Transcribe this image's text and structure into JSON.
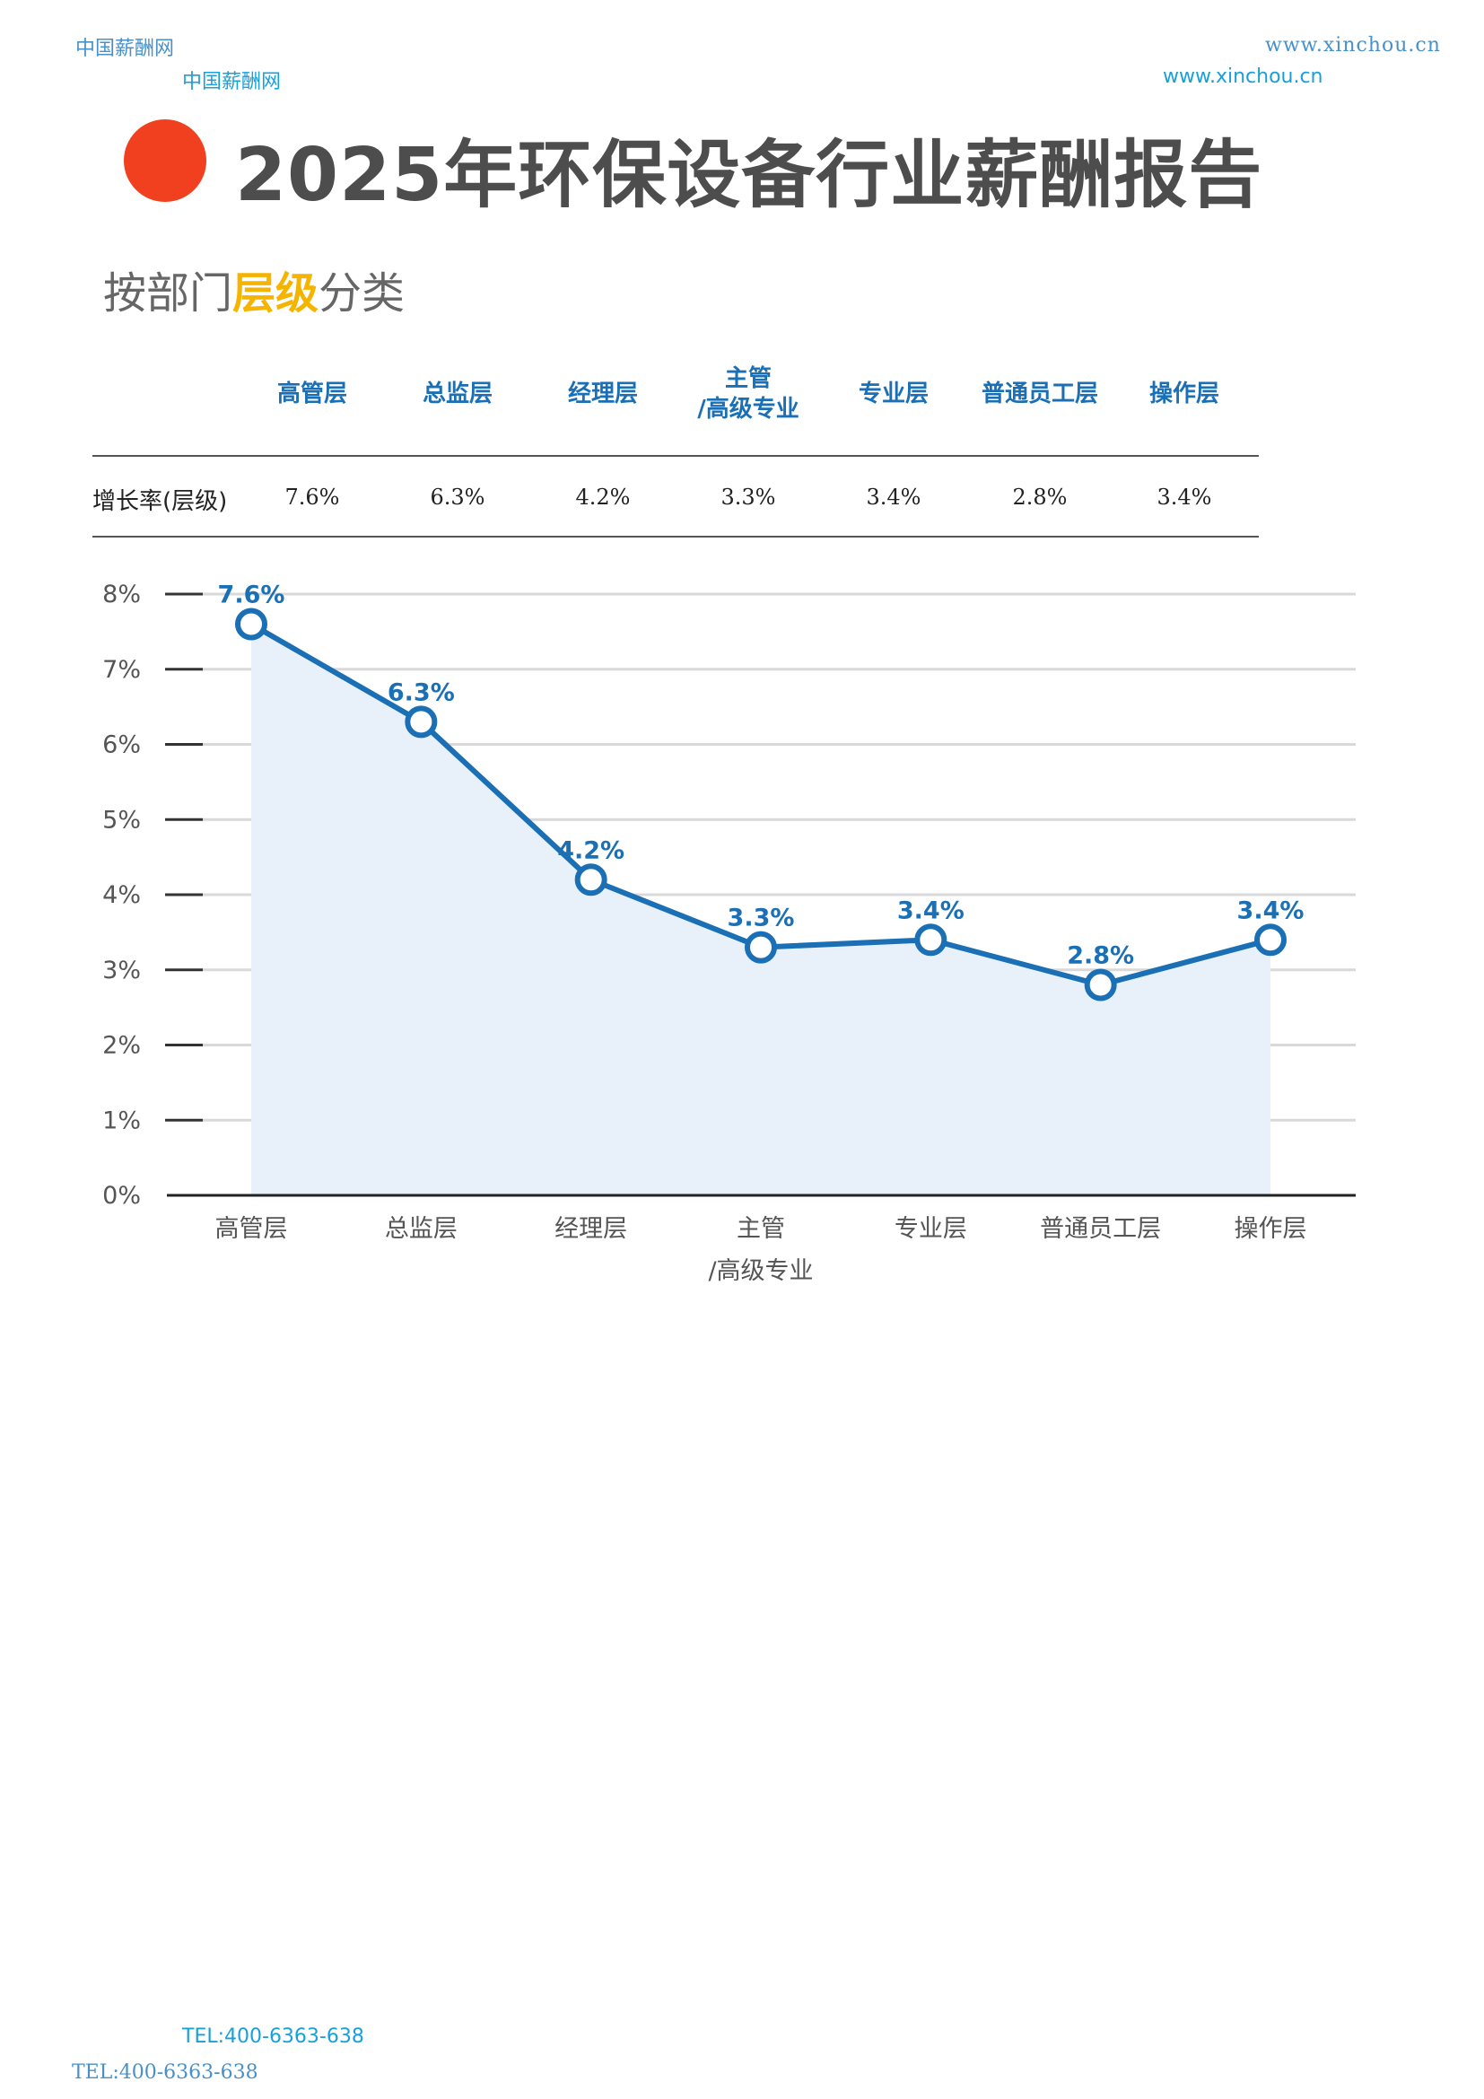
{
  "header": {
    "brand_top": "中国薪酬网",
    "brand_sub": "中国薪酬网",
    "url_top": "www.xinchou.cn",
    "url_sub": "www.xinchou.cn"
  },
  "page_title": "2025年环保设备行业薪酬报告",
  "subtitle": {
    "before": "按部门",
    "highlight": "层级",
    "after": "分类"
  },
  "table": {
    "columns": [
      "高管层",
      "总监层",
      "经理层",
      "主管\n/高级专业",
      "专业层",
      "普通员工层",
      "操作层"
    ],
    "row_label": "增长率(层级)",
    "values": [
      "7.6%",
      "6.3%",
      "4.2%",
      "3.3%",
      "3.4%",
      "2.8%",
      "3.4%"
    ]
  },
  "chart_data": {
    "type": "line",
    "categories": [
      "高管层",
      "总监层",
      "经理层",
      "主管\n/高级专业",
      "专业层",
      "普通员工层",
      "操作层"
    ],
    "series": [
      {
        "values": [
          7.6,
          6.3,
          4.2,
          3.3,
          3.4,
          2.8,
          3.4
        ]
      }
    ],
    "data_labels": [
      "7.6%",
      "6.3%",
      "4.2%",
      "3.3%",
      "3.4%",
      "2.8%",
      "3.4%"
    ],
    "y_ticks": [
      "0%",
      "1%",
      "2%",
      "3%",
      "4%",
      "5%",
      "6%",
      "7%",
      "8%"
    ],
    "ylim": [
      0,
      8
    ],
    "grid": true,
    "area_fill": true,
    "colors": {
      "line": "#1a6fb5",
      "fill": "#e8f0fa",
      "grid": "#d9d9d9",
      "marker_fill": "#ffffff"
    }
  },
  "footer": {
    "tel_top": "TEL:400-6363-638",
    "tel_bottom": "TEL:400-6363-638"
  }
}
